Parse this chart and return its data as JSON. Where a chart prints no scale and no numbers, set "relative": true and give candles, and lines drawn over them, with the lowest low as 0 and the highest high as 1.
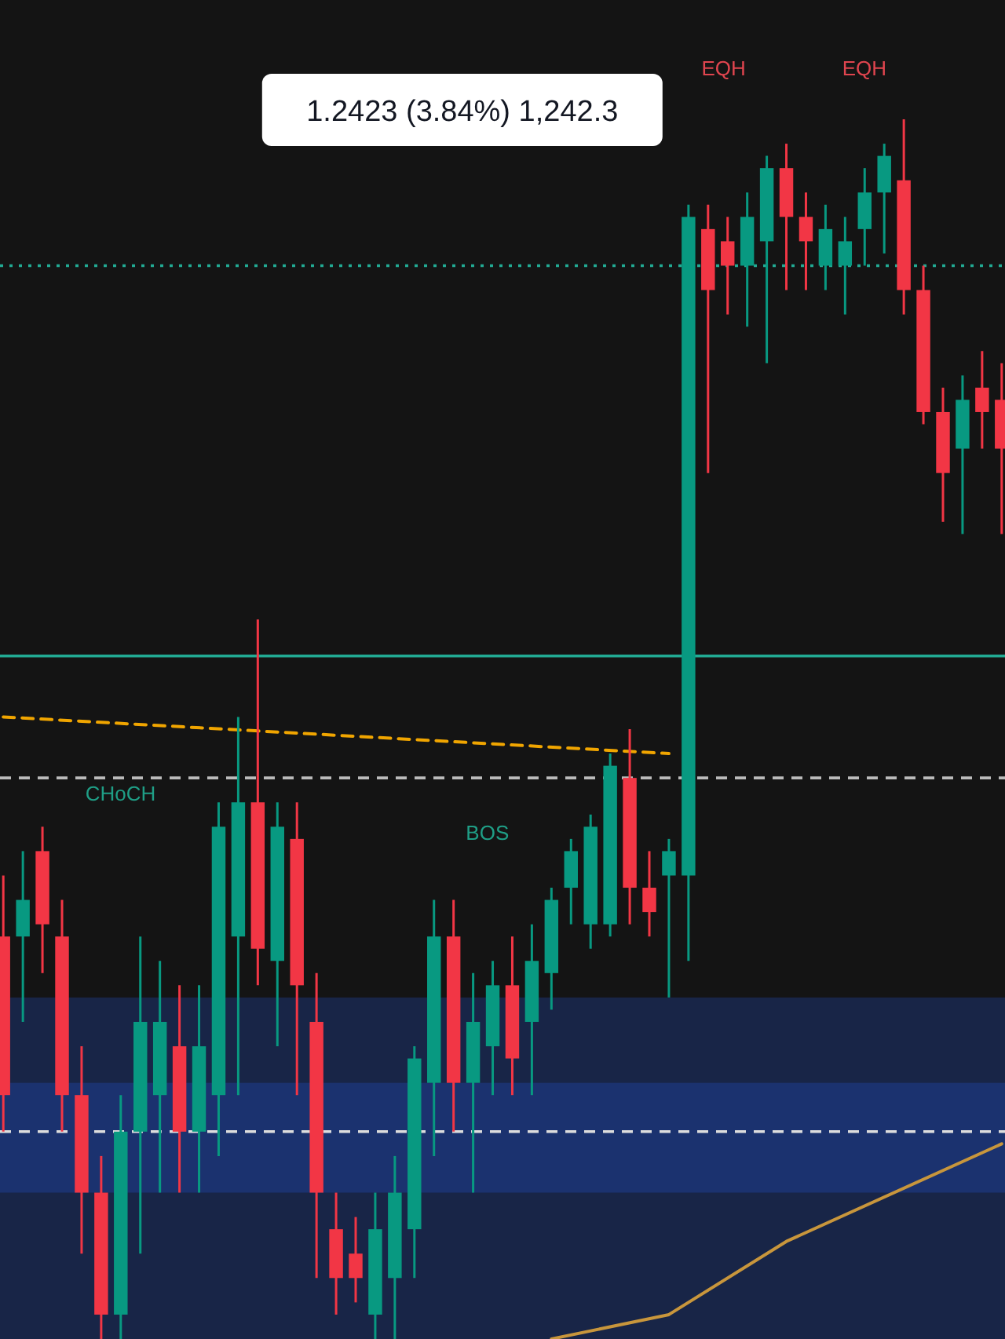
{
  "chart_data": {
    "type": "candlestick",
    "relative": true,
    "categories": [
      null,
      null,
      null,
      null,
      null,
      null,
      null,
      null,
      null,
      null,
      null,
      null,
      null,
      null,
      null,
      null,
      null,
      null,
      null,
      null,
      null,
      null,
      null,
      null,
      null,
      null,
      null,
      null,
      null,
      null,
      null,
      null,
      null,
      null,
      null,
      null,
      null,
      null,
      null,
      null,
      null,
      null,
      null,
      null,
      null,
      null,
      null,
      null,
      null,
      null,
      null,
      null
    ],
    "ohlc": [
      [
        0.33,
        0.38,
        0.17,
        0.2
      ],
      [
        0.33,
        0.4,
        0.26,
        0.36
      ],
      [
        0.4,
        0.42,
        0.3,
        0.34
      ],
      [
        0.33,
        0.36,
        0.17,
        0.2
      ],
      [
        0.2,
        0.24,
        0.07,
        0.12
      ],
      [
        0.12,
        0.15,
        0,
        0.02
      ],
      [
        0.02,
        0.2,
        0,
        0.17
      ],
      [
        0.17,
        0.33,
        0.07,
        0.26
      ],
      [
        0.2,
        0.31,
        0.12,
        0.26
      ],
      [
        0.24,
        0.29,
        0.12,
        0.17
      ],
      [
        0.17,
        0.29,
        0.12,
        0.24
      ],
      [
        0.2,
        0.44,
        0.15,
        0.42
      ],
      [
        0.33,
        0.51,
        0.2,
        0.44
      ],
      [
        0.44,
        0.59,
        0.29,
        0.32
      ],
      [
        0.31,
        0.44,
        0.24,
        0.42
      ],
      [
        0.41,
        0.44,
        0.2,
        0.29
      ],
      [
        0.26,
        0.3,
        0.05,
        0.12
      ],
      [
        0.09,
        0.12,
        0.02,
        0.05
      ],
      [
        0.07,
        0.1,
        0.03,
        0.05
      ],
      [
        0.02,
        0.12,
        0,
        0.09
      ],
      [
        0.05,
        0.15,
        0,
        0.12
      ],
      [
        0.09,
        0.24,
        0.05,
        0.23
      ],
      [
        0.21,
        0.36,
        0.15,
        0.33
      ],
      [
        0.33,
        0.36,
        0.17,
        0.21
      ],
      [
        0.21,
        0.3,
        0.12,
        0.26
      ],
      [
        0.24,
        0.31,
        0.2,
        0.29
      ],
      [
        0.29,
        0.33,
        0.2,
        0.23
      ],
      [
        0.26,
        0.34,
        0.2,
        0.31
      ],
      [
        0.3,
        0.37,
        0.27,
        0.36
      ],
      [
        0.37,
        0.41,
        0.34,
        0.4
      ],
      [
        0.34,
        0.43,
        0.32,
        0.42
      ],
      [
        0.34,
        0.48,
        0.33,
        0.47
      ],
      [
        0.46,
        0.5,
        0.34,
        0.37
      ],
      [
        0.37,
        0.4,
        0.33,
        0.35
      ],
      [
        0.38,
        0.41,
        0.28,
        0.4
      ],
      [
        0.38,
        0.93,
        0.31,
        0.92
      ],
      [
        0.91,
        0.93,
        0.71,
        0.86
      ],
      [
        0.9,
        0.92,
        0.84,
        0.88
      ],
      [
        0.88,
        0.94,
        0.83,
        0.92
      ],
      [
        0.9,
        0.97,
        0.8,
        0.96
      ],
      [
        0.96,
        0.98,
        0.86,
        0.92
      ],
      [
        0.92,
        0.94,
        0.86,
        0.9
      ],
      [
        0.88,
        0.93,
        0.86,
        0.91
      ],
      [
        0.88,
        0.92,
        0.84,
        0.9
      ],
      [
        0.91,
        0.96,
        0.88,
        0.94
      ],
      [
        0.94,
        0.98,
        0.89,
        0.97
      ],
      [
        0.95,
        1,
        0.84,
        0.86
      ],
      [
        0.86,
        0.88,
        0.75,
        0.76
      ],
      [
        0.76,
        0.78,
        0.67,
        0.71
      ],
      [
        0.73,
        0.79,
        0.66,
        0.77
      ],
      [
        0.78,
        0.81,
        0.73,
        0.76
      ],
      [
        0.77,
        0.8,
        0.66,
        0.73
      ]
    ],
    "colors": [
      "#f23645",
      "#089981",
      "#f23645",
      "#f23645",
      "#f23645",
      "#f23645",
      "#089981",
      "#089981",
      "#089981",
      "#f23645",
      "#089981",
      "#089981",
      "#089981",
      "#f23645",
      "#089981",
      "#f23645",
      "#f23645",
      "#f23645",
      "#f23645",
      "#089981",
      "#089981",
      "#089981",
      "#089981",
      "#f23645",
      "#089981",
      "#089981",
      "#f23645",
      "#089981",
      "#089981",
      "#089981",
      "#089981",
      "#089981",
      "#f23645",
      "#f23645",
      "#089981",
      "#089981",
      "#f23645",
      "#f23645",
      "#089981",
      "#089981",
      "#f23645",
      "#f23645",
      "#089981",
      "#089981",
      "#089981",
      "#089981",
      "#f23645",
      "#f23645",
      "#f23645",
      "#089981",
      "#f23645",
      "#f23645"
    ],
    "series": [
      {
        "type": "line",
        "color": "#f0a500",
        "line_style": "dashed",
        "values": [
          0.51,
          null,
          null,
          null,
          null,
          null,
          null,
          null,
          null,
          null,
          null,
          null,
          null,
          null,
          null,
          null,
          null,
          null,
          null,
          null,
          null,
          null,
          null,
          null,
          null,
          null,
          null,
          null,
          null,
          null,
          null,
          null,
          null,
          null,
          0.48,
          null,
          null,
          null,
          null,
          null,
          null,
          null,
          null,
          null,
          null,
          null,
          null,
          null,
          null,
          null,
          null,
          null
        ]
      },
      {
        "type": "line",
        "color": "#c8963c",
        "line_style": "solid",
        "values": [
          null,
          null,
          null,
          null,
          null,
          null,
          null,
          null,
          null,
          null,
          null,
          null,
          null,
          null,
          null,
          null,
          null,
          null,
          null,
          null,
          null,
          null,
          null,
          null,
          null,
          null,
          null,
          null,
          0,
          null,
          null,
          null,
          null,
          null,
          0.02,
          null,
          null,
          null,
          null,
          null,
          0.08,
          null,
          null,
          null,
          null,
          null,
          null,
          null,
          null,
          null,
          null,
          0.16
        ]
      }
    ],
    "ref_lines": [
      {
        "axis": "y",
        "value": 0.88,
        "color": "#22ab94",
        "line_style": "dotted"
      },
      {
        "axis": "y",
        "value": 0.56,
        "color": "#22ab94",
        "line_style": "solid"
      },
      {
        "axis": "y",
        "value": 0.46,
        "color": "#bbbbbb",
        "line_style": "dashed"
      },
      {
        "axis": "y",
        "value": 0.17,
        "color": "#dddddd",
        "line_style": "dashed"
      }
    ],
    "bands": [
      {
        "axis": "y",
        "from": 0.12,
        "to": 0.28,
        "color": "#2962ff"
      },
      {
        "axis": "y",
        "from": 0,
        "to": 0.21,
        "color": "#2962ff"
      }
    ],
    "annotations": [
      "1.2423 (3.84%) 1,242.3",
      "CHoCH",
      "BOS",
      "EQH",
      "EQH"
    ]
  }
}
